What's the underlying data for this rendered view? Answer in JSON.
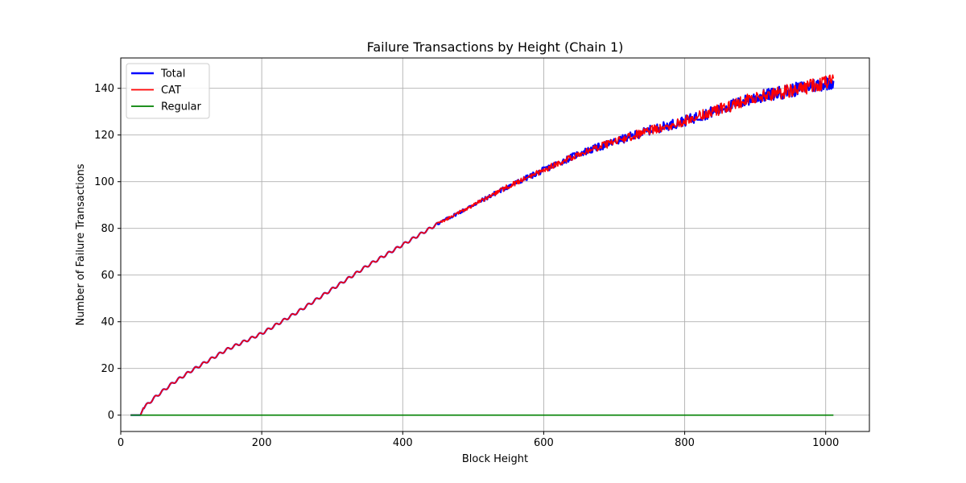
{
  "chart_data": {
    "type": "line",
    "title": "Failure Transactions by Height (Chain 1)",
    "xlabel": "Block Height",
    "ylabel": "Number of Failure Transactions",
    "xlim": [
      0,
      1062
    ],
    "ylim": [
      -7,
      153
    ],
    "xticks": [
      0,
      200,
      400,
      600,
      800,
      1000
    ],
    "yticks": [
      0,
      20,
      40,
      60,
      80,
      100,
      120,
      140
    ],
    "grid": true,
    "legend_position": "top-left",
    "x_range": [
      14,
      1011
    ],
    "series": [
      {
        "name": "Total",
        "color": "#0000ff",
        "points": [
          [
            14,
            0
          ],
          [
            28,
            0
          ],
          [
            32,
            3
          ],
          [
            50,
            8
          ],
          [
            75,
            14
          ],
          [
            100,
            19
          ],
          [
            150,
            28
          ],
          [
            200,
            35
          ],
          [
            250,
            44
          ],
          [
            300,
            54
          ],
          [
            350,
            64
          ],
          [
            400,
            73
          ],
          [
            450,
            82
          ],
          [
            500,
            90
          ],
          [
            550,
            98
          ],
          [
            600,
            105
          ],
          [
            650,
            112
          ],
          [
            700,
            117
          ],
          [
            750,
            122
          ],
          [
            800,
            126
          ],
          [
            850,
            131
          ],
          [
            900,
            136
          ],
          [
            950,
            139
          ],
          [
            1011,
            143
          ]
        ]
      },
      {
        "name": "CAT",
        "color": "#ff0000",
        "points": [
          [
            14,
            0
          ],
          [
            28,
            0
          ],
          [
            32,
            3
          ],
          [
            50,
            8
          ],
          [
            75,
            14
          ],
          [
            100,
            19
          ],
          [
            150,
            28
          ],
          [
            200,
            35
          ],
          [
            250,
            44
          ],
          [
            300,
            54
          ],
          [
            350,
            64
          ],
          [
            400,
            73
          ],
          [
            450,
            82
          ],
          [
            500,
            90
          ],
          [
            550,
            98
          ],
          [
            600,
            105
          ],
          [
            650,
            112
          ],
          [
            700,
            117
          ],
          [
            750,
            122
          ],
          [
            800,
            126
          ],
          [
            850,
            131
          ],
          [
            900,
            136
          ],
          [
            950,
            139
          ],
          [
            1011,
            143
          ]
        ]
      },
      {
        "name": "Regular",
        "color": "#008000",
        "points": [
          [
            14,
            0
          ],
          [
            1011,
            0
          ]
        ]
      }
    ]
  }
}
